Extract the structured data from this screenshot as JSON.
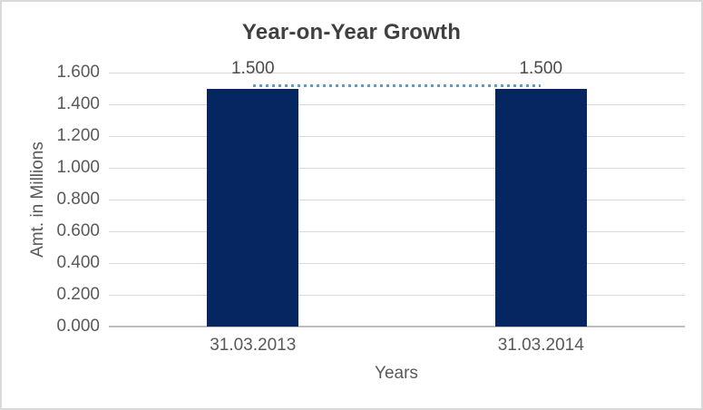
{
  "chart_data": {
    "type": "bar",
    "title": "Year-on-Year Growth",
    "xlabel": "Years",
    "ylabel": "Amt. in Millions",
    "categories": [
      "31.03.2013",
      "31.03.2014"
    ],
    "series": [
      {
        "name": "amount-bars",
        "type": "bar",
        "values": [
          1.5,
          1.5
        ],
        "labels": [
          "1.500",
          "1.500"
        ],
        "color": "#052660"
      },
      {
        "name": "trend-overlay",
        "type": "line",
        "line_style": "dotted",
        "values": [
          1.5,
          1.5
        ],
        "color": "#5B9BD5"
      }
    ],
    "ylim": [
      0,
      1.6
    ],
    "ytick_step": 0.2,
    "yticks": [
      "0.000",
      "0.200",
      "0.400",
      "0.600",
      "0.800",
      "1.000",
      "1.200",
      "1.400",
      "1.600"
    ],
    "grid": true,
    "legend_position": "none"
  },
  "colors": {
    "bar": "#052660",
    "trend_line": "#5B9BD5",
    "gridline": "#D9D9D9",
    "axis_line": "#BFBFBF",
    "title_text": "#404040",
    "tick_text": "#595959",
    "data_label_text": "#4a4a4a",
    "chart_border": "#D9D9D9",
    "background": "#FFFFFF"
  }
}
